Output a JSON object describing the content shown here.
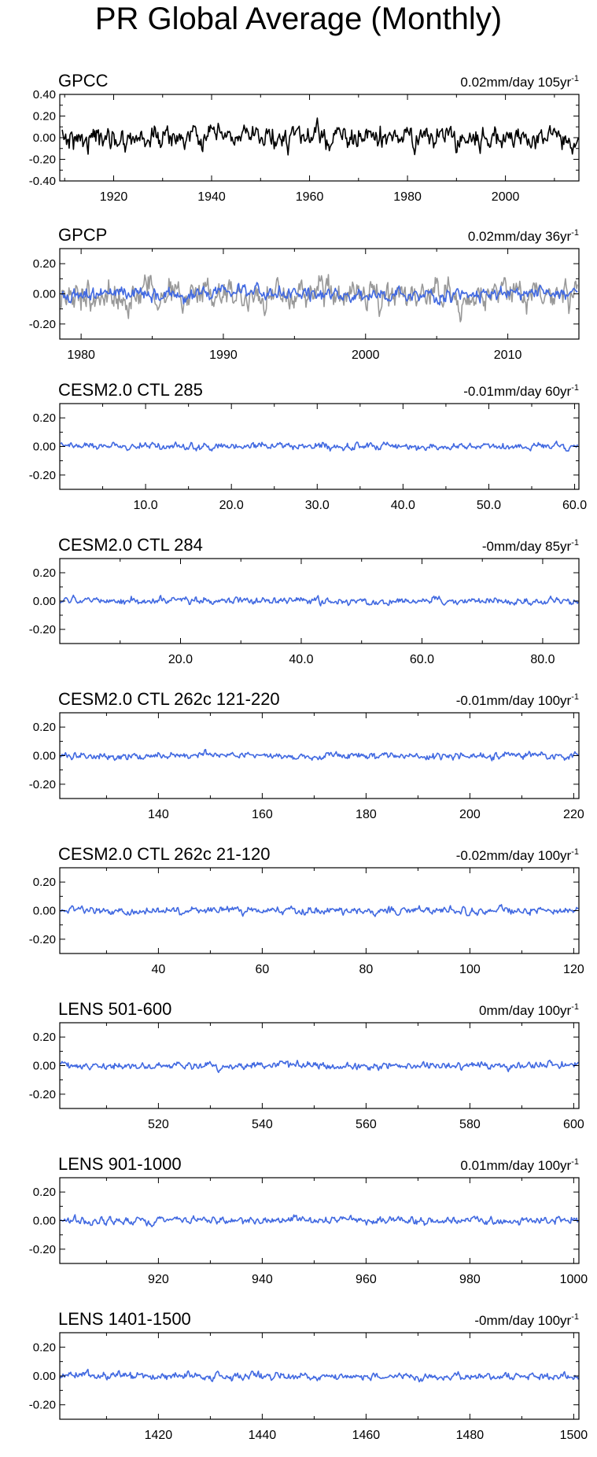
{
  "page": {
    "title": "PR Global Average (Monthly)"
  },
  "colors": {
    "primary": "#4169e1",
    "secondary": "#000000",
    "gpcp_reference": "#999999"
  },
  "chart_data": [
    {
      "type": "line",
      "title": "GPCC",
      "trend_label": "0.02mm/day 105yr",
      "trend_unit_sup": "-1",
      "xlim": [
        1909,
        2015
      ],
      "ylim": [
        -0.4,
        0.4
      ],
      "x_ticks": [
        1920,
        1940,
        1960,
        1980,
        2000
      ],
      "x_tick_labels": [
        "1920",
        "1940",
        "1960",
        "1980",
        "2000"
      ],
      "y_ticks": [
        -0.4,
        -0.2,
        0.0,
        0.2,
        0.4
      ],
      "y_tick_labels": [
        "-0.40",
        "-0.20",
        "0.00",
        "0.20",
        "0.40"
      ],
      "series": [
        {
          "color": "#000000",
          "amplitude": 0.1,
          "start": 1909.5,
          "end": 2014.9
        }
      ]
    },
    {
      "type": "line",
      "title": "GPCP",
      "trend_label": "0.02mm/day 36yr",
      "trend_unit_sup": "-1",
      "xlim": [
        1978.5,
        2015
      ],
      "ylim": [
        -0.3,
        0.3
      ],
      "x_ticks": [
        1980,
        1990,
        2000,
        2010
      ],
      "x_tick_labels": [
        "1980",
        "1990",
        "2000",
        "2010"
      ],
      "y_ticks": [
        -0.2,
        0.0,
        0.2
      ],
      "y_tick_labels": [
        "-0.20",
        "0.00",
        "0.20"
      ],
      "series": [
        {
          "color": "#999999",
          "amplitude": 0.1,
          "start": 1978.6,
          "end": 2014.9
        },
        {
          "color": "#4169e1",
          "amplitude": 0.045,
          "start": 1978.6,
          "end": 2014.9
        }
      ]
    },
    {
      "type": "line",
      "title": "CESM2.0 CTL 285",
      "trend_label": "-0.01mm/day 60yr",
      "trend_unit_sup": "-1",
      "xlim": [
        0,
        60.5
      ],
      "ylim": [
        -0.3,
        0.3
      ],
      "x_ticks": [
        10,
        20,
        30,
        40,
        50,
        60
      ],
      "x_tick_labels": [
        "10.0",
        "20.0",
        "30.0",
        "40.0",
        "50.0",
        "60.0"
      ],
      "y_ticks": [
        -0.2,
        0.0,
        0.2
      ],
      "y_tick_labels": [
        "-0.20",
        "0.00",
        "0.20"
      ],
      "series": [
        {
          "color": "#4169e1",
          "amplitude": 0.025,
          "start": 0.1,
          "end": 60.4
        }
      ]
    },
    {
      "type": "line",
      "title": "CESM2.0 CTL 284",
      "trend_label": "-0mm/day 85yr",
      "trend_unit_sup": "-1",
      "xlim": [
        0,
        86
      ],
      "ylim": [
        -0.3,
        0.3
      ],
      "x_ticks": [
        20,
        40,
        60,
        80
      ],
      "x_tick_labels": [
        "20.0",
        "40.0",
        "60.0",
        "80.0"
      ],
      "y_ticks": [
        -0.2,
        0.0,
        0.2
      ],
      "y_tick_labels": [
        "-0.20",
        "0.00",
        "0.20"
      ],
      "series": [
        {
          "color": "#4169e1",
          "amplitude": 0.025,
          "start": 0.1,
          "end": 85.9
        }
      ]
    },
    {
      "type": "line",
      "title": "CESM2.0 CTL 262c 121-220",
      "trend_label": "-0.01mm/day 100yr",
      "trend_unit_sup": "-1",
      "xlim": [
        121,
        221
      ],
      "ylim": [
        -0.3,
        0.3
      ],
      "x_ticks": [
        140,
        160,
        180,
        200,
        220
      ],
      "x_tick_labels": [
        "140",
        "160",
        "180",
        "200",
        "220"
      ],
      "y_ticks": [
        -0.2,
        0.0,
        0.2
      ],
      "y_tick_labels": [
        "-0.20",
        "0.00",
        "0.20"
      ],
      "series": [
        {
          "color": "#4169e1",
          "amplitude": 0.025,
          "start": 121.1,
          "end": 220.9
        }
      ]
    },
    {
      "type": "line",
      "title": "CESM2.0 CTL 262c 21-120",
      "trend_label": "-0.02mm/day 100yr",
      "trend_unit_sup": "-1",
      "xlim": [
        21,
        121
      ],
      "ylim": [
        -0.3,
        0.3
      ],
      "x_ticks": [
        40,
        60,
        80,
        100,
        120
      ],
      "x_tick_labels": [
        "40",
        "60",
        "80",
        "100",
        "120"
      ],
      "y_ticks": [
        -0.2,
        0.0,
        0.2
      ],
      "y_tick_labels": [
        "-0.20",
        "0.00",
        "0.20"
      ],
      "series": [
        {
          "color": "#4169e1",
          "amplitude": 0.025,
          "start": 21.1,
          "end": 120.9
        }
      ]
    },
    {
      "type": "line",
      "title": "LENS 501-600",
      "trend_label": "0mm/day 100yr",
      "trend_unit_sup": "-1",
      "xlim": [
        501,
        601
      ],
      "ylim": [
        -0.3,
        0.3
      ],
      "x_ticks": [
        520,
        540,
        560,
        580,
        600
      ],
      "x_tick_labels": [
        "520",
        "540",
        "560",
        "580",
        "600"
      ],
      "y_ticks": [
        -0.2,
        0.0,
        0.2
      ],
      "y_tick_labels": [
        "-0.20",
        "0.00",
        "0.20"
      ],
      "series": [
        {
          "color": "#4169e1",
          "amplitude": 0.025,
          "start": 501.1,
          "end": 600.9
        }
      ]
    },
    {
      "type": "line",
      "title": "LENS 901-1000",
      "trend_label": "0.01mm/day 100yr",
      "trend_unit_sup": "-1",
      "xlim": [
        901,
        1001
      ],
      "ylim": [
        -0.3,
        0.3
      ],
      "x_ticks": [
        920,
        940,
        960,
        980,
        1000
      ],
      "x_tick_labels": [
        "920",
        "940",
        "960",
        "980",
        "1000"
      ],
      "y_ticks": [
        -0.2,
        0.0,
        0.2
      ],
      "y_tick_labels": [
        "-0.20",
        "0.00",
        "0.20"
      ],
      "series": [
        {
          "color": "#4169e1",
          "amplitude": 0.025,
          "start": 901.1,
          "end": 1000.9
        }
      ]
    },
    {
      "type": "line",
      "title": "LENS 1401-1500",
      "trend_label": "-0mm/day 100yr",
      "trend_unit_sup": "-1",
      "xlim": [
        1401,
        1501
      ],
      "ylim": [
        -0.3,
        0.3
      ],
      "x_ticks": [
        1420,
        1440,
        1460,
        1480,
        1500
      ],
      "x_tick_labels": [
        "1420",
        "1440",
        "1460",
        "1480",
        "1500"
      ],
      "y_ticks": [
        -0.2,
        0.0,
        0.2
      ],
      "y_tick_labels": [
        "-0.20",
        "0.00",
        "0.20"
      ],
      "series": [
        {
          "color": "#4169e1",
          "amplitude": 0.025,
          "start": 1401.1,
          "end": 1500.9
        }
      ]
    }
  ]
}
